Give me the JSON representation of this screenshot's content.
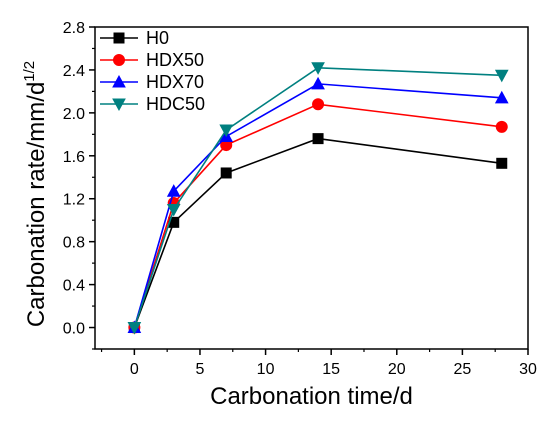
{
  "chart_data": {
    "type": "line",
    "xlabel": "Carbonation time/d",
    "ylabel": "Carbonation rate/mm/d",
    "ylabel_superscript": "1/2",
    "xlim": [
      -3,
      30
    ],
    "ylim": [
      -0.2,
      2.8
    ],
    "xticks": [
      0,
      5,
      10,
      15,
      20,
      25,
      30
    ],
    "yticks": [
      0.0,
      0.4,
      0.8,
      1.2,
      1.6,
      2.0,
      2.4,
      2.8
    ],
    "ytick_labels": [
      "0.0",
      "0.4",
      "0.8",
      "1.2",
      "1.6",
      "2.0",
      "2.4",
      "2.8"
    ],
    "legend_position": "top-left",
    "x": [
      0,
      3,
      7,
      14,
      28
    ],
    "series": [
      {
        "name": "H0",
        "color": "#000000",
        "marker": "square",
        "values": [
          0.0,
          0.98,
          1.44,
          1.76,
          1.53
        ]
      },
      {
        "name": "HDX50",
        "color": "#ff0000",
        "marker": "circle",
        "values": [
          0.0,
          1.16,
          1.7,
          2.08,
          1.87
        ]
      },
      {
        "name": "HDX70",
        "color": "#0000ff",
        "marker": "triangle-up",
        "values": [
          0.0,
          1.27,
          1.78,
          2.27,
          2.14
        ]
      },
      {
        "name": "HDC50",
        "color": "#008080",
        "marker": "triangle-down",
        "values": [
          0.0,
          1.1,
          1.84,
          2.42,
          2.35
        ]
      }
    ]
  }
}
